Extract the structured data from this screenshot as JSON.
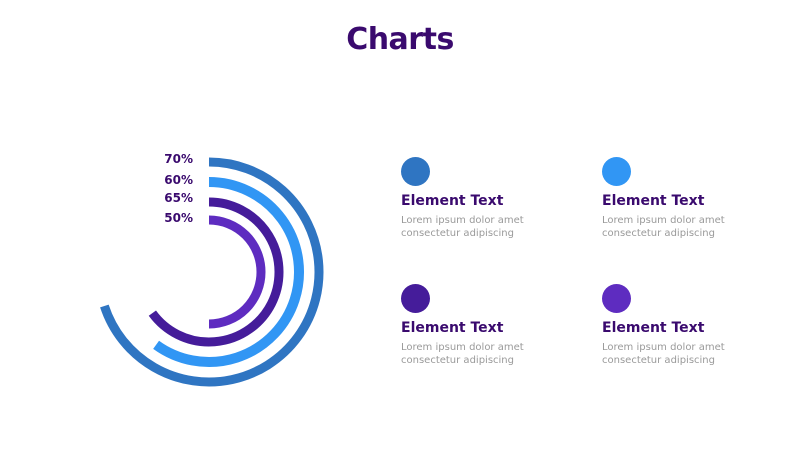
{
  "title": "Charts",
  "chart_data": {
    "type": "radial-bar",
    "unit": "%",
    "series": [
      {
        "label": "70%",
        "value": 70,
        "color": "#2f75c2"
      },
      {
        "label": "60%",
        "value": 60,
        "color": "#3196f4"
      },
      {
        "label": "65%",
        "value": 65,
        "color": "#451c9a"
      },
      {
        "label": "50%",
        "value": 50,
        "color": "#5e2cc0"
      }
    ],
    "max": 100
  },
  "legend": [
    {
      "title": "Element Text",
      "desc": "Lorem ipsum dolor amet consectetur adipiscing",
      "color": "#2f75c2"
    },
    {
      "title": "Element Text",
      "desc": "Lorem ipsum dolor amet consectetur adipiscing",
      "color": "#3196f4"
    },
    {
      "title": "Element Text",
      "desc": "Lorem ipsum dolor amet consectetur adipiscing",
      "color": "#451c9a"
    },
    {
      "title": "Element Text",
      "desc": "Lorem ipsum dolor amet consectetur adipiscing",
      "color": "#5e2cc0"
    }
  ],
  "colors": {
    "title": "#3a0a6e",
    "label": "#3a0a6e",
    "muted": "#9a9a9a"
  }
}
